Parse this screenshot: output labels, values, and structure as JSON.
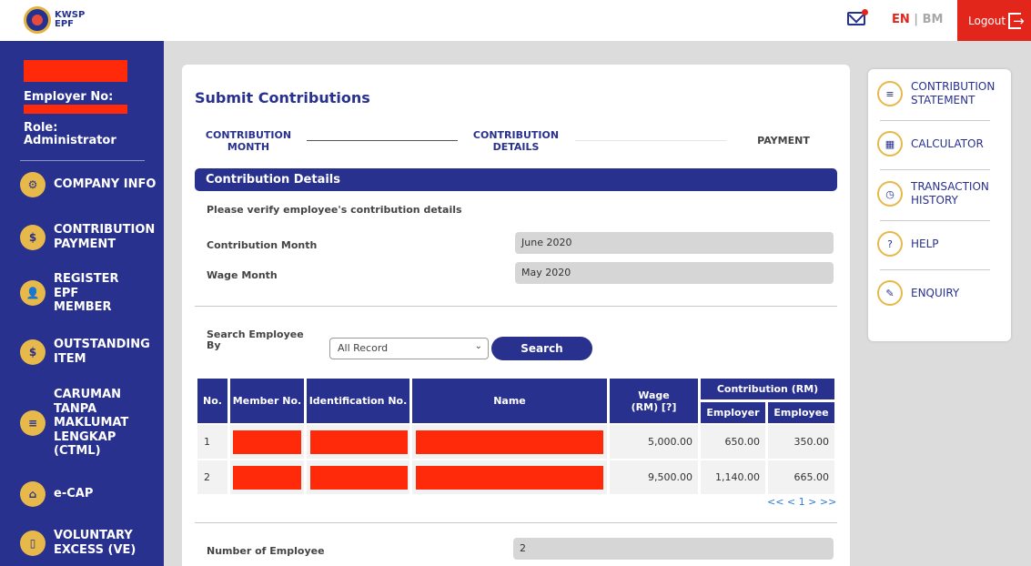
{
  "header": {
    "logo_line1": "KWSP",
    "logo_line2": "EPF",
    "lang_en": "EN",
    "lang_sep": "|",
    "lang_bm": "BM",
    "logout_label": "Logout"
  },
  "sidebar": {
    "employer_label": "Employer No:",
    "role_line1": "Role:",
    "role_line2": "Administrator",
    "items": [
      {
        "label": "COMPANY INFO",
        "icon": "gear-icon"
      },
      {
        "label": "CONTRIBUTION PAYMENT",
        "icon": "dollar-hand-icon"
      },
      {
        "label": "REGISTER EPF MEMBER",
        "icon": "user-add-icon"
      },
      {
        "label": "OUTSTANDING ITEM",
        "icon": "money-bag-icon"
      },
      {
        "label": "CARUMAN TANPA MAKLUMAT LENGKAP (CTML)",
        "icon": "document-icon"
      },
      {
        "label": "e-CAP",
        "icon": "shop-icon"
      },
      {
        "label": "VOLUNTARY EXCESS (VE)",
        "icon": "phone-money-icon"
      }
    ]
  },
  "main": {
    "title": "Submit Contributions",
    "steps": [
      {
        "line1": "CONTRIBUTION",
        "line2": "MONTH"
      },
      {
        "line1": "CONTRIBUTION",
        "line2": "DETAILS"
      },
      {
        "line1": "PAYMENT",
        "line2": ""
      }
    ],
    "section_title": "Contribution Details",
    "verify_note": "Please verify employee's contribution details",
    "contribution_month_label": "Contribution Month",
    "contribution_month_value": "June 2020",
    "wage_month_label": "Wage Month",
    "wage_month_value": "May 2020",
    "search_label_line1": "Search Employee",
    "search_label_line2": "By",
    "search_select_value": "All Record",
    "search_button": "Search",
    "table": {
      "headers": {
        "no": "No.",
        "member_no": "Member No.",
        "id_no": "Identification No.",
        "name": "Name",
        "wage": "Wage (RM) [?]",
        "contribution": "Contribution (RM)",
        "employer": "Employer",
        "employee": "Employee"
      },
      "rows": [
        {
          "no": "1",
          "wage": "5,000.00",
          "employer": "650.00",
          "employee": "350.00"
        },
        {
          "no": "2",
          "wage": "9,500.00",
          "employer": "1,140.00",
          "employee": "665.00"
        }
      ]
    },
    "pager": "<< < 1 > >>",
    "employee_count_label": "Number of Employee",
    "employee_count_value": "2"
  },
  "right_panel": {
    "items": [
      {
        "label": "CONTRIBUTION STATEMENT",
        "icon": "statement-icon"
      },
      {
        "label": "CALCULATOR",
        "icon": "calculator-icon"
      },
      {
        "label": "TRANSACTION HISTORY",
        "icon": "clock-icon"
      },
      {
        "label": "HELP",
        "icon": "help-book-icon"
      },
      {
        "label": "ENQUIRY",
        "icon": "enquiry-icon"
      }
    ]
  }
}
